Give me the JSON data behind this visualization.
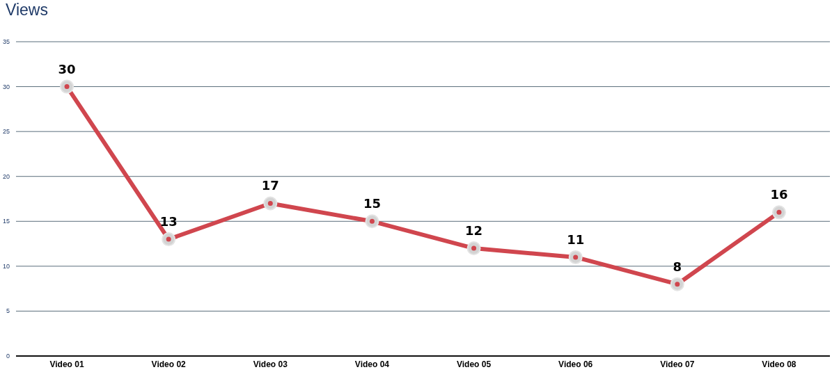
{
  "chart_data": {
    "type": "line",
    "title": "Views",
    "categories": [
      "Video 01",
      "Video 02",
      "Video 03",
      "Video 04",
      "Video 05",
      "Video 06",
      "Video 07",
      "Video 08"
    ],
    "series": [
      {
        "color": "#d0464e",
        "values": [
          30,
          13,
          17,
          15,
          12,
          11,
          8,
          16
        ]
      }
    ],
    "ylim": [
      0,
      35
    ],
    "yticks": [
      0,
      5,
      10,
      15,
      20,
      25,
      30,
      35
    ],
    "grid": "y",
    "marker": "circle",
    "line_style": "solid",
    "data_labels": true
  }
}
